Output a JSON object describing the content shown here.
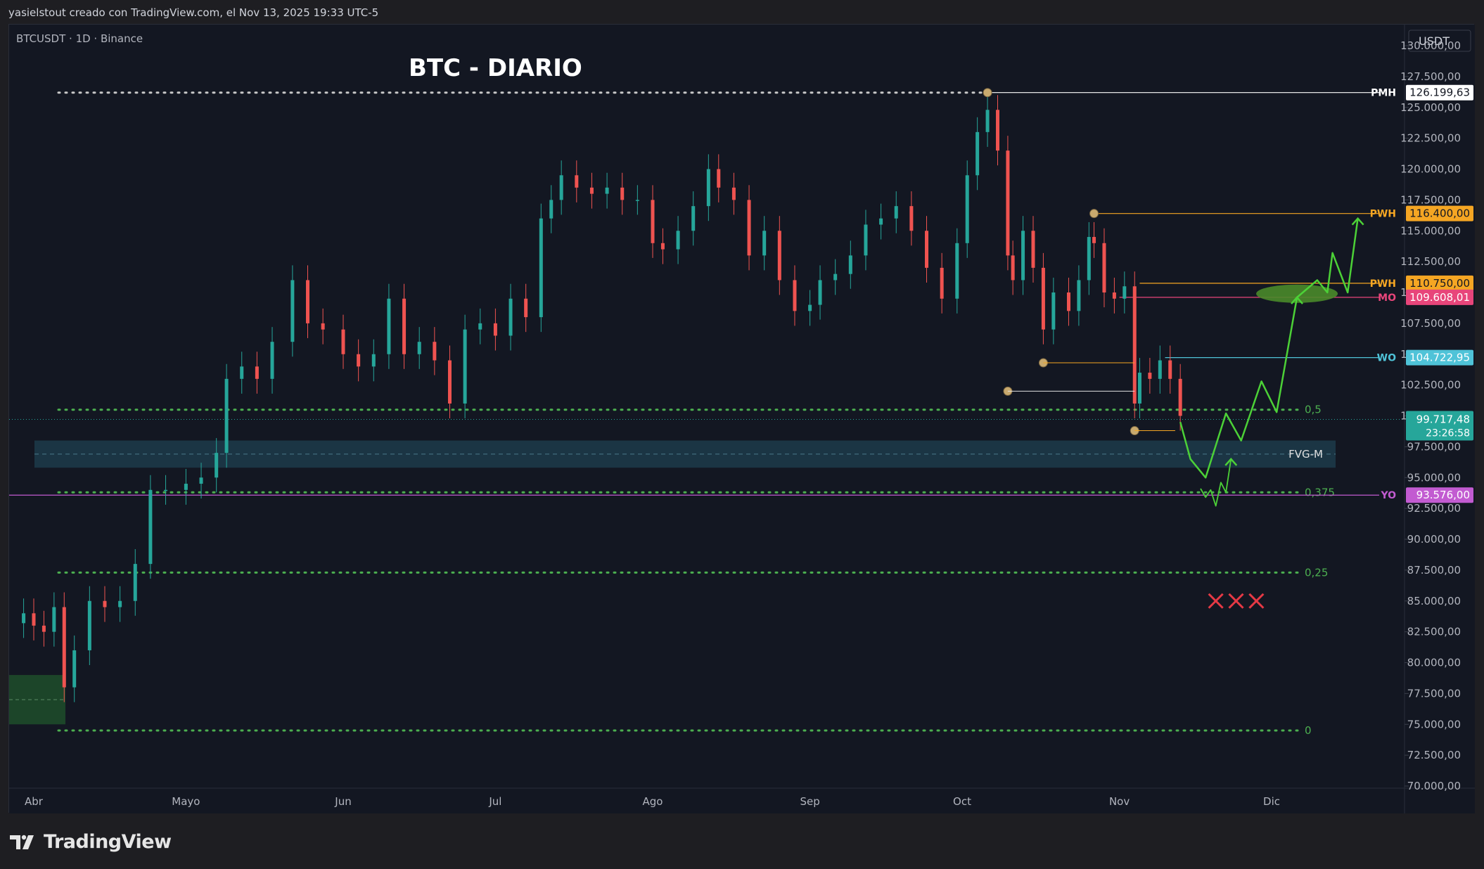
{
  "header": {
    "attribution": "yasielstout creado con TradingView.com, el Nov 13, 2025 19:33 UTC-5"
  },
  "chart_data": {
    "type": "candlestick",
    "symbol_label": "BTCUSDT · 1D · Binance",
    "title": "BTC - DIARIO",
    "currency": "USDT",
    "y_ticks": [
      "130.000,00",
      "127.500,00",
      "125.000,00",
      "122.500,00",
      "120.000,00",
      "117.500,00",
      "115.000,00",
      "112.500,00",
      "110.000,00",
      "107.500,00",
      "105.000,00",
      "102.500,00",
      "100.000,00",
      "97.500,00",
      "95.000,00",
      "92.500,00",
      "90.000,00",
      "87.500,00",
      "85.000,00",
      "82.500,00",
      "80.000,00",
      "77.500,00",
      "75.000,00",
      "72.500,00",
      "70.000,00"
    ],
    "y_tick_values": [
      130000,
      127500,
      125000,
      122500,
      120000,
      117500,
      115000,
      112500,
      110000,
      107500,
      105000,
      102500,
      100000,
      97500,
      95000,
      92500,
      90000,
      87500,
      85000,
      82500,
      80000,
      77500,
      75000,
      72500,
      70000
    ],
    "x_tick_labels": [
      {
        "label": "Abr",
        "date": "2025-04-01"
      },
      {
        "label": "Mayo",
        "date": "2025-05-01"
      },
      {
        "label": "Jun",
        "date": "2025-06-01"
      },
      {
        "label": "Jul",
        "date": "2025-07-01"
      },
      {
        "label": "Ago",
        "date": "2025-08-01"
      },
      {
        "label": "Sep",
        "date": "2025-09-01"
      },
      {
        "label": "Oct",
        "date": "2025-10-01"
      },
      {
        "label": "Nov",
        "date": "2025-11-01"
      },
      {
        "label": "Dic",
        "date": "2025-12-01"
      }
    ],
    "price_series": {
      "name": "BTCUSDT",
      "dates": [
        "2025-03-30",
        "2025-04-01",
        "2025-04-03",
        "2025-04-05",
        "2025-04-07",
        "2025-04-09",
        "2025-04-12",
        "2025-04-15",
        "2025-04-18",
        "2025-04-21",
        "2025-04-24",
        "2025-04-27",
        "2025-05-01",
        "2025-05-04",
        "2025-05-07",
        "2025-05-09",
        "2025-05-12",
        "2025-05-15",
        "2025-05-18",
        "2025-05-22",
        "2025-05-25",
        "2025-05-28",
        "2025-06-01",
        "2025-06-04",
        "2025-06-07",
        "2025-06-10",
        "2025-06-13",
        "2025-06-16",
        "2025-06-19",
        "2025-06-22",
        "2025-06-25",
        "2025-06-28",
        "2025-07-01",
        "2025-07-04",
        "2025-07-07",
        "2025-07-10",
        "2025-07-12",
        "2025-07-14",
        "2025-07-17",
        "2025-07-20",
        "2025-07-23",
        "2025-07-26",
        "2025-07-29",
        "2025-08-01",
        "2025-08-03",
        "2025-08-06",
        "2025-08-09",
        "2025-08-12",
        "2025-08-14",
        "2025-08-17",
        "2025-08-20",
        "2025-08-23",
        "2025-08-26",
        "2025-08-29",
        "2025-09-01",
        "2025-09-03",
        "2025-09-06",
        "2025-09-09",
        "2025-09-12",
        "2025-09-15",
        "2025-09-18",
        "2025-09-21",
        "2025-09-24",
        "2025-09-27",
        "2025-09-30",
        "2025-10-02",
        "2025-10-04",
        "2025-10-06",
        "2025-10-08",
        "2025-10-10",
        "2025-10-11",
        "2025-10-13",
        "2025-10-15",
        "2025-10-17",
        "2025-10-19",
        "2025-10-22",
        "2025-10-24",
        "2025-10-26",
        "2025-10-27",
        "2025-10-29",
        "2025-10-31",
        "2025-11-02",
        "2025-11-04",
        "2025-11-05",
        "2025-11-07",
        "2025-11-09",
        "2025-11-11",
        "2025-11-13"
      ],
      "values": [
        84000,
        83000,
        82500,
        84500,
        78000,
        81000,
        85000,
        84500,
        85000,
        88000,
        94000,
        94000,
        94500,
        95000,
        97000,
        103000,
        104000,
        103000,
        106000,
        111000,
        107500,
        107000,
        105000,
        104000,
        105000,
        109500,
        105000,
        106000,
        104500,
        101000,
        107000,
        107500,
        106500,
        109500,
        108000,
        116000,
        117500,
        119500,
        118500,
        118000,
        118500,
        117500,
        117500,
        114000,
        113500,
        115000,
        117000,
        120000,
        118500,
        117500,
        113000,
        115000,
        111000,
        108500,
        109000,
        111000,
        111500,
        113000,
        115500,
        116000,
        117000,
        115000,
        112000,
        109500,
        114000,
        119500,
        123000,
        124800,
        121500,
        113000,
        111000,
        115000,
        112000,
        107000,
        110000,
        108500,
        111000,
        114500,
        114000,
        110000,
        109500,
        110500,
        101000,
        103500,
        103000,
        104500,
        103000,
        100000
      ]
    },
    "levels": [
      {
        "label": "PMH",
        "value_label": "126.199,63",
        "value": 126199.63,
        "color": "#ffffff"
      },
      {
        "label": "PWH",
        "value_label": "116.400,00",
        "value": 116400,
        "color": "#f5a623"
      },
      {
        "label": "PWH",
        "value_label": "110.750,00",
        "value": 110750,
        "color": "#f5a623"
      },
      {
        "label": "MO",
        "value_label": "109.608,01",
        "value": 109608.01,
        "color": "#e8457a"
      },
      {
        "label": "WO",
        "value_label": "104.722,95",
        "value": 104722.95,
        "color": "#4fc3d8"
      },
      {
        "label": "YO",
        "value_label": "93.576,00",
        "value": 93576,
        "color": "#c25bd1"
      }
    ],
    "fib_levels": [
      {
        "label": "0,5",
        "value": 100500
      },
      {
        "label": "0,375",
        "value": 93800
      },
      {
        "label": "0,25",
        "value": 87300
      },
      {
        "label": "0",
        "value": 74500
      }
    ],
    "fvg_zone": {
      "label": "FVG-M",
      "low": 95800,
      "high": 98000
    },
    "current_price": {
      "value_label": "99.717,48",
      "value": 99717.48,
      "countdown": "23:26:58",
      "color": "#26a69a"
    },
    "projection_path": {
      "color": "#4cd137",
      "dates": [
        "2025-11-13",
        "2025-11-15",
        "2025-11-18",
        "2025-11-22",
        "2025-11-25",
        "2025-11-29",
        "2025-12-02",
        "2025-12-06",
        "2025-12-10",
        "2025-12-12",
        "2025-12-13",
        "2025-12-16",
        "2025-12-18"
      ],
      "values": [
        99500,
        96500,
        95000,
        100200,
        98000,
        102800,
        100300,
        109600,
        111000,
        110000,
        113200,
        110000,
        116000
      ]
    },
    "alt_path": {
      "color": "#4cd137",
      "dates": [
        "2025-11-17",
        "2025-11-18",
        "2025-11-19",
        "2025-11-20",
        "2025-11-21",
        "2025-11-22",
        "2025-11-23"
      ],
      "values": [
        94100,
        93400,
        94000,
        92700,
        94600,
        93800,
        96500
      ]
    },
    "crosses": {
      "color": "#e53945",
      "dates": [
        "2025-11-20",
        "2025-11-24",
        "2025-11-28"
      ],
      "value": 85000
    }
  }
}
